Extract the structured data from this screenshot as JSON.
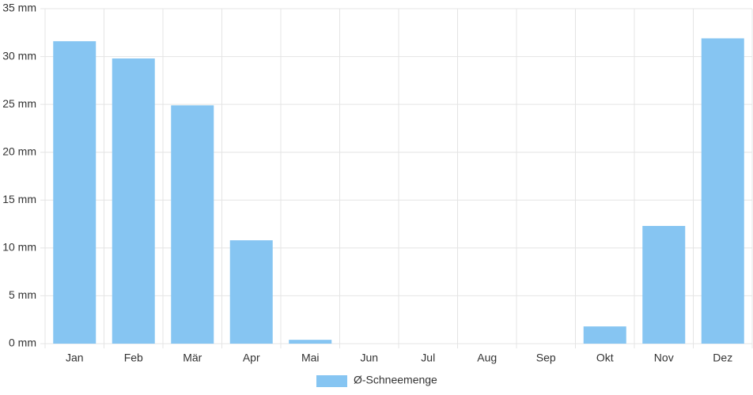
{
  "chart_data": {
    "type": "bar",
    "categories": [
      "Jan",
      "Feb",
      "Mär",
      "Apr",
      "Mai",
      "Jun",
      "Jul",
      "Aug",
      "Sep",
      "Okt",
      "Nov",
      "Dez"
    ],
    "series": [
      {
        "name": "Ø-Schneemenge",
        "color": "#86c5f2",
        "values": [
          31.6,
          29.8,
          24.9,
          10.8,
          0.4,
          0,
          0,
          0,
          0,
          1.8,
          12.3,
          31.9
        ]
      }
    ],
    "ylim": [
      0,
      35
    ],
    "yticks": [
      {
        "value": 0,
        "label": "0 mm"
      },
      {
        "value": 5,
        "label": "5 mm"
      },
      {
        "value": 10,
        "label": "10 mm"
      },
      {
        "value": 15,
        "label": "15 mm"
      },
      {
        "value": 20,
        "label": "20 mm"
      },
      {
        "value": 25,
        "label": "25 mm"
      },
      {
        "value": 30,
        "label": "30 mm"
      },
      {
        "value": 35,
        "label": "35 mm"
      }
    ],
    "grid": true,
    "legend": "bottom"
  }
}
